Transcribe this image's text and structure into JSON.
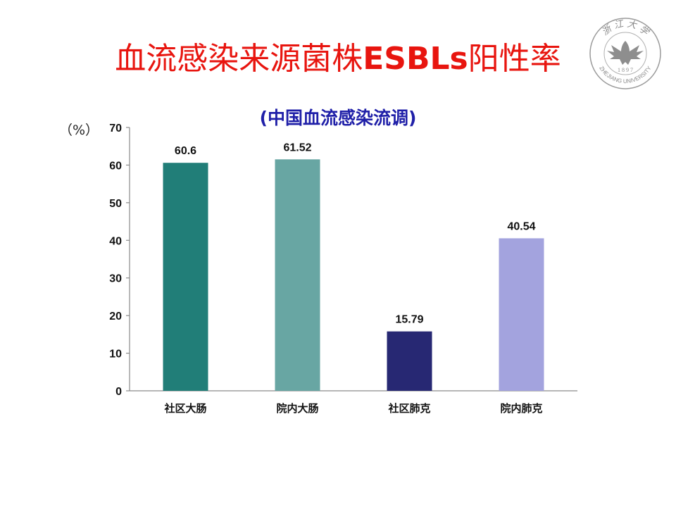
{
  "slide": {
    "title_pre": "血流感染来源菌株",
    "title_esbl": "ESBLs",
    "title_post": "阳性率",
    "subtitle": "(中国血流感染流调)",
    "unit": "（%）"
  },
  "logo": {
    "text_top": "浙 江 大 学",
    "text_year": "1 8 9 7",
    "text_bottom": "ZHEJIANG UNIVERSITY",
    "icon": "eagle-emblem"
  },
  "chart_data": {
    "type": "bar",
    "categories": [
      "社区大肠",
      "院内大肠",
      "社区肺克",
      "院内肺克"
    ],
    "values": [
      60.6,
      61.52,
      15.79,
      40.54
    ],
    "value_labels": [
      "60.6",
      "61.52",
      "15.79",
      "40.54"
    ],
    "colors": [
      "#217e78",
      "#68a6a3",
      "#272873",
      "#a3a3de"
    ],
    "ylim": [
      0,
      70
    ],
    "yticks": [
      0,
      10,
      20,
      30,
      40,
      50,
      60,
      70
    ],
    "title": "(中国血流感染流调)",
    "ylabel": "（%）",
    "xlabel": "",
    "grid": false,
    "legend": "none"
  }
}
